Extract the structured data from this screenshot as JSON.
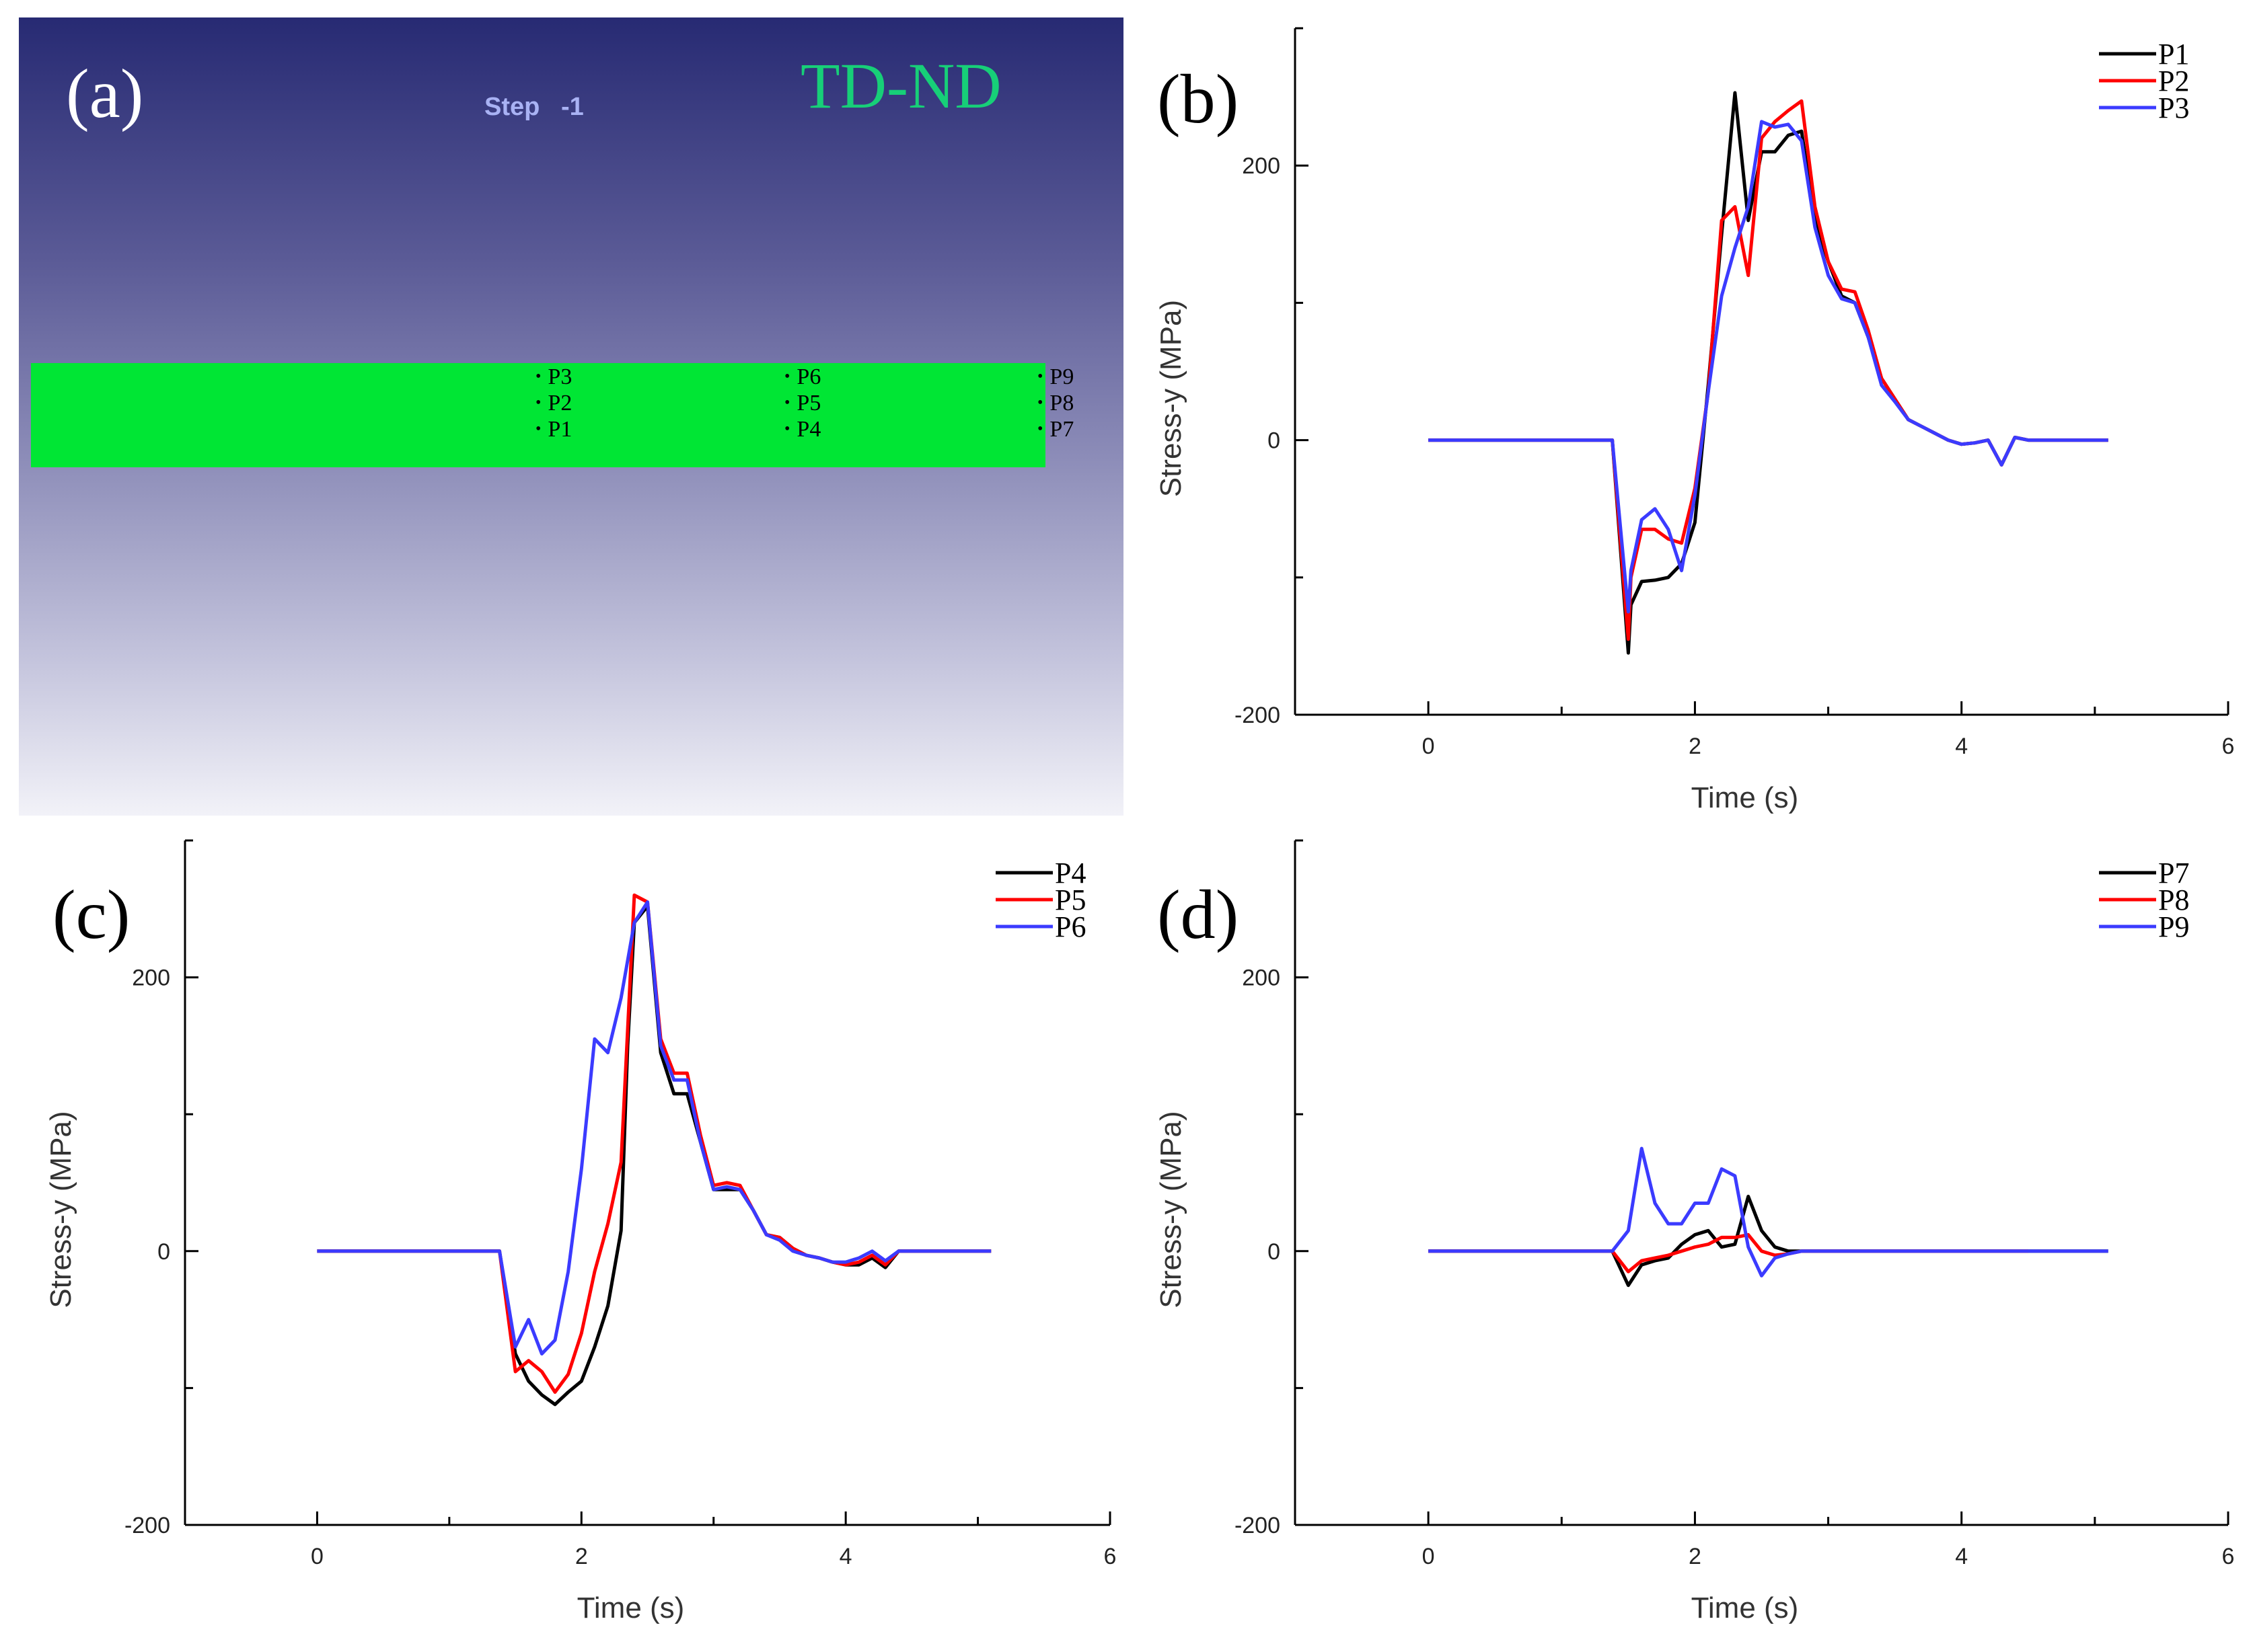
{
  "panel_a": {
    "letter": "(a)",
    "step_label": "Step   -1",
    "title": "TD-ND",
    "points": [
      "P1",
      "P2",
      "P3",
      "P4",
      "P5",
      "P6",
      "P7",
      "P8",
      "P9"
    ],
    "colors": {
      "background_top": "#272a73",
      "plate": "#00e634",
      "title": "#17cf78",
      "step": "#a9b2f4"
    }
  },
  "chart_data": [
    {
      "type": "line",
      "letter": "(b)",
      "xlabel": "Time (s)",
      "ylabel": "Stress-y (MPa)",
      "xlim": [
        -1,
        6
      ],
      "ylim": [
        -200,
        300
      ],
      "xticks": [
        0,
        2,
        4,
        6
      ],
      "yticks": [
        -200,
        0,
        200
      ],
      "grid": false,
      "legend": "top-right",
      "series": [
        {
          "name": "P1",
          "color": "#000000",
          "x": [
            0,
            1.38,
            1.5,
            1.52,
            1.6,
            1.7,
            1.8,
            1.9,
            2.0,
            2.1,
            2.2,
            2.3,
            2.4,
            2.5,
            2.6,
            2.7,
            2.8,
            2.9,
            3.0,
            3.1,
            3.2,
            3.3,
            3.4,
            3.5,
            3.6,
            3.7,
            3.8,
            3.9,
            4.0,
            4.1,
            4.2,
            4.3,
            4.4,
            4.5,
            4.6,
            4.8,
            5.1
          ],
          "y": [
            0,
            0,
            -155,
            -120,
            -103,
            -102,
            -100,
            -90,
            -60,
            40,
            150,
            253,
            160,
            210,
            210,
            222,
            225,
            160,
            130,
            105,
            100,
            75,
            45,
            30,
            15,
            10,
            5,
            0,
            -3,
            -2,
            0,
            -18,
            2,
            0,
            0,
            0,
            0
          ]
        },
        {
          "name": "P2",
          "color": "#ff0000",
          "x": [
            0,
            1.38,
            1.5,
            1.52,
            1.6,
            1.7,
            1.8,
            1.9,
            2.0,
            2.1,
            2.2,
            2.3,
            2.4,
            2.5,
            2.6,
            2.7,
            2.8,
            2.9,
            3.0,
            3.1,
            3.2,
            3.3,
            3.4,
            3.5,
            3.6,
            3.7,
            3.8,
            3.9,
            4.0,
            4.1,
            4.2,
            4.3,
            4.4,
            4.5,
            4.6,
            4.8,
            5.1
          ],
          "y": [
            0,
            0,
            -145,
            -100,
            -65,
            -65,
            -72,
            -75,
            -35,
            35,
            160,
            170,
            120,
            220,
            232,
            240,
            247,
            170,
            130,
            110,
            108,
            80,
            45,
            30,
            15,
            10,
            5,
            0,
            -3,
            -2,
            0,
            -18,
            2,
            0,
            0,
            0,
            0
          ]
        },
        {
          "name": "P3",
          "color": "#3b3bff",
          "x": [
            0,
            1.38,
            1.5,
            1.52,
            1.6,
            1.7,
            1.8,
            1.9,
            2.0,
            2.1,
            2.2,
            2.3,
            2.4,
            2.5,
            2.6,
            2.7,
            2.8,
            2.9,
            3.0,
            3.1,
            3.2,
            3.3,
            3.4,
            3.5,
            3.6,
            3.7,
            3.8,
            3.9,
            4.0,
            4.1,
            4.2,
            4.3,
            4.4,
            4.5,
            4.6,
            4.8,
            5.1
          ],
          "y": [
            0,
            0,
            -125,
            -95,
            -58,
            -50,
            -65,
            -95,
            -40,
            35,
            105,
            140,
            170,
            232,
            228,
            230,
            218,
            155,
            120,
            103,
            100,
            75,
            40,
            28,
            15,
            10,
            5,
            0,
            -3,
            -2,
            0,
            -18,
            2,
            0,
            0,
            0,
            0
          ]
        }
      ]
    },
    {
      "type": "line",
      "letter": "(c)",
      "xlabel": "Time (s)",
      "ylabel": "Stress-y (MPa)",
      "xlim": [
        -1,
        6
      ],
      "ylim": [
        -200,
        300
      ],
      "xticks": [
        0,
        2,
        4,
        6
      ],
      "yticks": [
        -200,
        0,
        200
      ],
      "grid": false,
      "legend": "top-right",
      "series": [
        {
          "name": "P4",
          "color": "#000000",
          "x": [
            0,
            1.38,
            1.5,
            1.6,
            1.7,
            1.8,
            1.9,
            2.0,
            2.1,
            2.2,
            2.3,
            2.35,
            2.4,
            2.5,
            2.6,
            2.7,
            2.8,
            2.9,
            3.0,
            3.1,
            3.2,
            3.3,
            3.4,
            3.5,
            3.6,
            3.7,
            3.8,
            3.9,
            4.0,
            4.1,
            4.2,
            4.3,
            4.4,
            4.5,
            4.6,
            4.8,
            5.1
          ],
          "y": [
            0,
            0,
            -75,
            -95,
            -105,
            -112,
            -103,
            -95,
            -70,
            -40,
            15,
            150,
            240,
            252,
            145,
            115,
            115,
            80,
            45,
            45,
            45,
            30,
            12,
            10,
            2,
            -3,
            -5,
            -8,
            -10,
            -10,
            -5,
            -12,
            0,
            0,
            0,
            0,
            0
          ]
        },
        {
          "name": "P5",
          "color": "#ff0000",
          "x": [
            0,
            1.38,
            1.5,
            1.6,
            1.7,
            1.8,
            1.9,
            2.0,
            2.1,
            2.2,
            2.3,
            2.4,
            2.5,
            2.6,
            2.7,
            2.8,
            2.9,
            3.0,
            3.1,
            3.2,
            3.3,
            3.4,
            3.5,
            3.6,
            3.7,
            3.8,
            3.9,
            4.0,
            4.1,
            4.2,
            4.3,
            4.4,
            4.5,
            4.6,
            4.8,
            5.1
          ],
          "y": [
            0,
            0,
            -88,
            -80,
            -88,
            -103,
            -90,
            -60,
            -15,
            20,
            65,
            260,
            255,
            155,
            130,
            130,
            85,
            48,
            50,
            48,
            30,
            12,
            10,
            2,
            -3,
            -5,
            -8,
            -10,
            -8,
            -3,
            -10,
            0,
            0,
            0,
            0,
            0
          ]
        },
        {
          "name": "P6",
          "color": "#3b3bff",
          "x": [
            0,
            1.38,
            1.5,
            1.6,
            1.7,
            1.8,
            1.9,
            2.0,
            2.1,
            2.2,
            2.3,
            2.4,
            2.5,
            2.6,
            2.7,
            2.8,
            2.9,
            3.0,
            3.1,
            3.2,
            3.3,
            3.4,
            3.5,
            3.6,
            3.7,
            3.8,
            3.9,
            4.0,
            4.1,
            4.2,
            4.3,
            4.4,
            4.5,
            4.6,
            4.8,
            5.1
          ],
          "y": [
            0,
            0,
            -70,
            -50,
            -75,
            -65,
            -15,
            60,
            155,
            145,
            185,
            240,
            255,
            150,
            125,
            125,
            80,
            45,
            47,
            45,
            30,
            12,
            8,
            0,
            -3,
            -5,
            -8,
            -8,
            -5,
            0,
            -7,
            0,
            0,
            0,
            0,
            0
          ]
        }
      ]
    },
    {
      "type": "line",
      "letter": "(d)",
      "xlabel": "Time (s)",
      "ylabel": "Stress-y (MPa)",
      "xlim": [
        -1,
        6
      ],
      "ylim": [
        -200,
        300
      ],
      "xticks": [
        0,
        2,
        4,
        6
      ],
      "yticks": [
        -200,
        0,
        200
      ],
      "grid": false,
      "legend": "top-right",
      "series": [
        {
          "name": "P7",
          "color": "#000000",
          "x": [
            0,
            1.38,
            1.5,
            1.6,
            1.7,
            1.8,
            1.9,
            2.0,
            2.1,
            2.2,
            2.3,
            2.4,
            2.5,
            2.6,
            2.7,
            2.8,
            3.0,
            3.5,
            4.0,
            4.5,
            5.1
          ],
          "y": [
            0,
            0,
            -25,
            -10,
            -7,
            -5,
            5,
            12,
            15,
            3,
            5,
            40,
            15,
            3,
            0,
            0,
            0,
            0,
            0,
            0,
            0
          ]
        },
        {
          "name": "P8",
          "color": "#ff0000",
          "x": [
            0,
            1.38,
            1.5,
            1.6,
            1.7,
            1.8,
            1.9,
            2.0,
            2.1,
            2.2,
            2.3,
            2.4,
            2.5,
            2.6,
            2.7,
            2.8,
            3.0,
            3.5,
            4.0,
            4.5
          ],
          "y": [
            0,
            0,
            -15,
            -7,
            -5,
            -3,
            0,
            3,
            5,
            10,
            10,
            12,
            0,
            -3,
            -2,
            0,
            0,
            0,
            0,
            0
          ]
        },
        {
          "name": "P9",
          "color": "#3b3bff",
          "x": [
            0,
            1.38,
            1.5,
            1.6,
            1.7,
            1.8,
            1.9,
            2.0,
            2.1,
            2.2,
            2.3,
            2.4,
            2.5,
            2.6,
            2.7,
            2.8,
            3.0,
            3.5,
            4.0,
            4.5,
            5.1
          ],
          "y": [
            0,
            0,
            15,
            75,
            35,
            20,
            20,
            35,
            35,
            60,
            55,
            3,
            -18,
            -5,
            -2,
            0,
            0,
            0,
            0,
            0,
            0
          ]
        }
      ]
    }
  ]
}
